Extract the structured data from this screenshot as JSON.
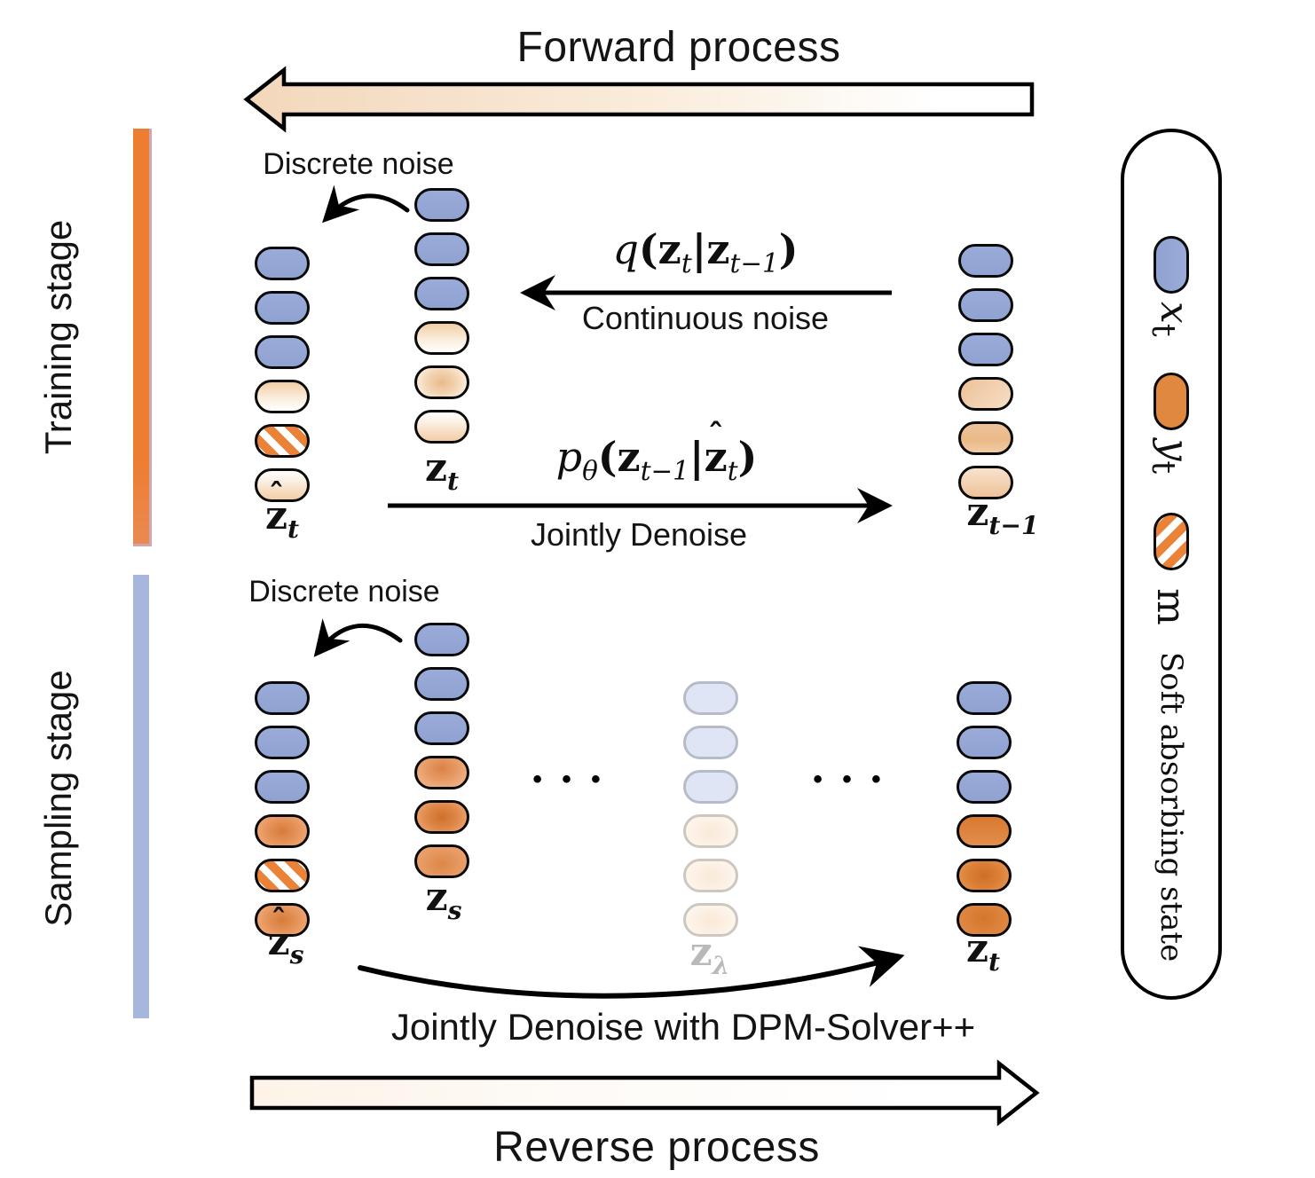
{
  "titles": {
    "forward": "Forward process",
    "reverse": "Reverse process"
  },
  "stage_labels": {
    "training": "Training stage",
    "sampling": "Sampling stage"
  },
  "annotations": {
    "discrete_noise_training": "Discrete noise",
    "discrete_noise_sampling": "Discrete noise",
    "continuous_noise": "Continuous noise",
    "jointly_denoise": "Jointly Denoise",
    "jointly_denoise_dpm": "Jointly Denoise with DPM-Solver++",
    "ellipsis": "• • •"
  },
  "formulas": {
    "q": {
      "func": "q",
      "open": "(z",
      "sub1": "t",
      "bar": "|z",
      "sub2": "t−1",
      "close": ")"
    },
    "p": {
      "func": "p",
      "fsub": "θ",
      "open": "(z",
      "sub1": "t−1",
      "bar": "|",
      "hat": "ˆ",
      "hatbase": "z",
      "sub2": "t",
      "close": ")"
    }
  },
  "stack_labels": {
    "zhat_t": {
      "hat": "ˆ",
      "base": "z",
      "sub": "t"
    },
    "z_t": {
      "base": "z",
      "sub": "t"
    },
    "z_tm1": {
      "base": "z",
      "sub": "t−1"
    },
    "zhat_s": {
      "hat": "ˆ",
      "base": "z",
      "sub": "s"
    },
    "z_s": {
      "base": "z",
      "sub": "s"
    },
    "z_lambda": {
      "base": "z",
      "sub": "λ"
    },
    "z_t_sampling": {
      "base": "z",
      "sub": "t"
    }
  },
  "stacks": {
    "zhat_t": [
      "blue",
      "blue",
      "blue",
      "cream-top",
      "striped",
      "cream-bottom"
    ],
    "z_t": [
      "blue",
      "blue",
      "blue",
      "cream-top",
      "cream-center",
      "cream-bottom"
    ],
    "z_tm1": [
      "blue",
      "blue",
      "blue",
      "tan-top",
      "tan-mid",
      "tan-bottom"
    ],
    "zhat_s": [
      "blue",
      "blue",
      "blue",
      "orange-center",
      "striped",
      "orange-center"
    ],
    "z_s": [
      "blue",
      "blue",
      "blue",
      "orange-soft-top",
      "orange-soft-center",
      "orange-soft-bottom"
    ],
    "z_lambda": [
      "ghost-blue",
      "ghost-blue",
      "ghost-blue",
      "ghost-cream",
      "ghost-cream",
      "ghost-cream"
    ],
    "z_t_sampling": [
      "blue",
      "blue",
      "blue",
      "orange-strong-top",
      "orange-strong-center",
      "orange-strong-bottom"
    ]
  },
  "legend": {
    "x": {
      "base": "x",
      "sub": "t"
    },
    "y": {
      "base": "y",
      "sub": "t"
    },
    "m": {
      "base": "m"
    },
    "note": "Soft absorbing state"
  },
  "colors": {
    "token_blue": "#95a7d5",
    "token_orange_solid": "#e0883f",
    "stripe_orange": "#ea8238",
    "bar_training_orange": "#ed7d31",
    "bar_sampling_blue": "#a6b6dd",
    "ghost_label_gray": "#b9b9b9",
    "forward_arrow_tint": "#f3d7bb"
  }
}
